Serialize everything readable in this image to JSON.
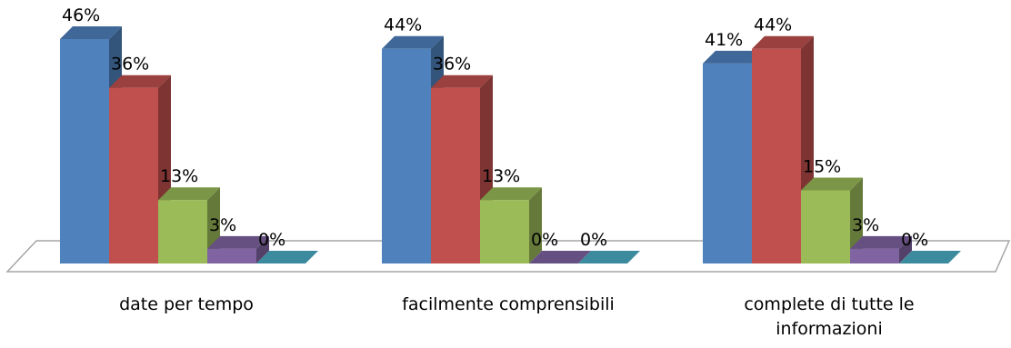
{
  "chart_data": {
    "type": "bar",
    "categories": [
      [
        "date per tempo"
      ],
      [
        "facilmente comprensibili"
      ],
      [
        "complete di tutte le",
        "informazioni"
      ]
    ],
    "series": [
      {
        "values": [
          46,
          44,
          41
        ],
        "labels": [
          "46%",
          "44%",
          "41%"
        ],
        "color": "#4f81bd"
      },
      {
        "values": [
          36,
          36,
          44
        ],
        "labels": [
          "36%",
          "36%",
          "44%"
        ],
        "color": "#c0504d"
      },
      {
        "values": [
          13,
          13,
          15
        ],
        "labels": [
          "13%",
          "13%",
          "15%"
        ],
        "color": "#9bbb59"
      },
      {
        "values": [
          3,
          0,
          3
        ],
        "labels": [
          "3%",
          "0%",
          "3%"
        ],
        "color": "#8064a2"
      },
      {
        "values": [
          0,
          0,
          0
        ],
        "labels": [
          "0%",
          "0%",
          "0%"
        ],
        "color": "#4bacc6"
      }
    ],
    "ylim": [
      0,
      46
    ],
    "legend": "none",
    "grid": false,
    "style": "3d-column"
  }
}
